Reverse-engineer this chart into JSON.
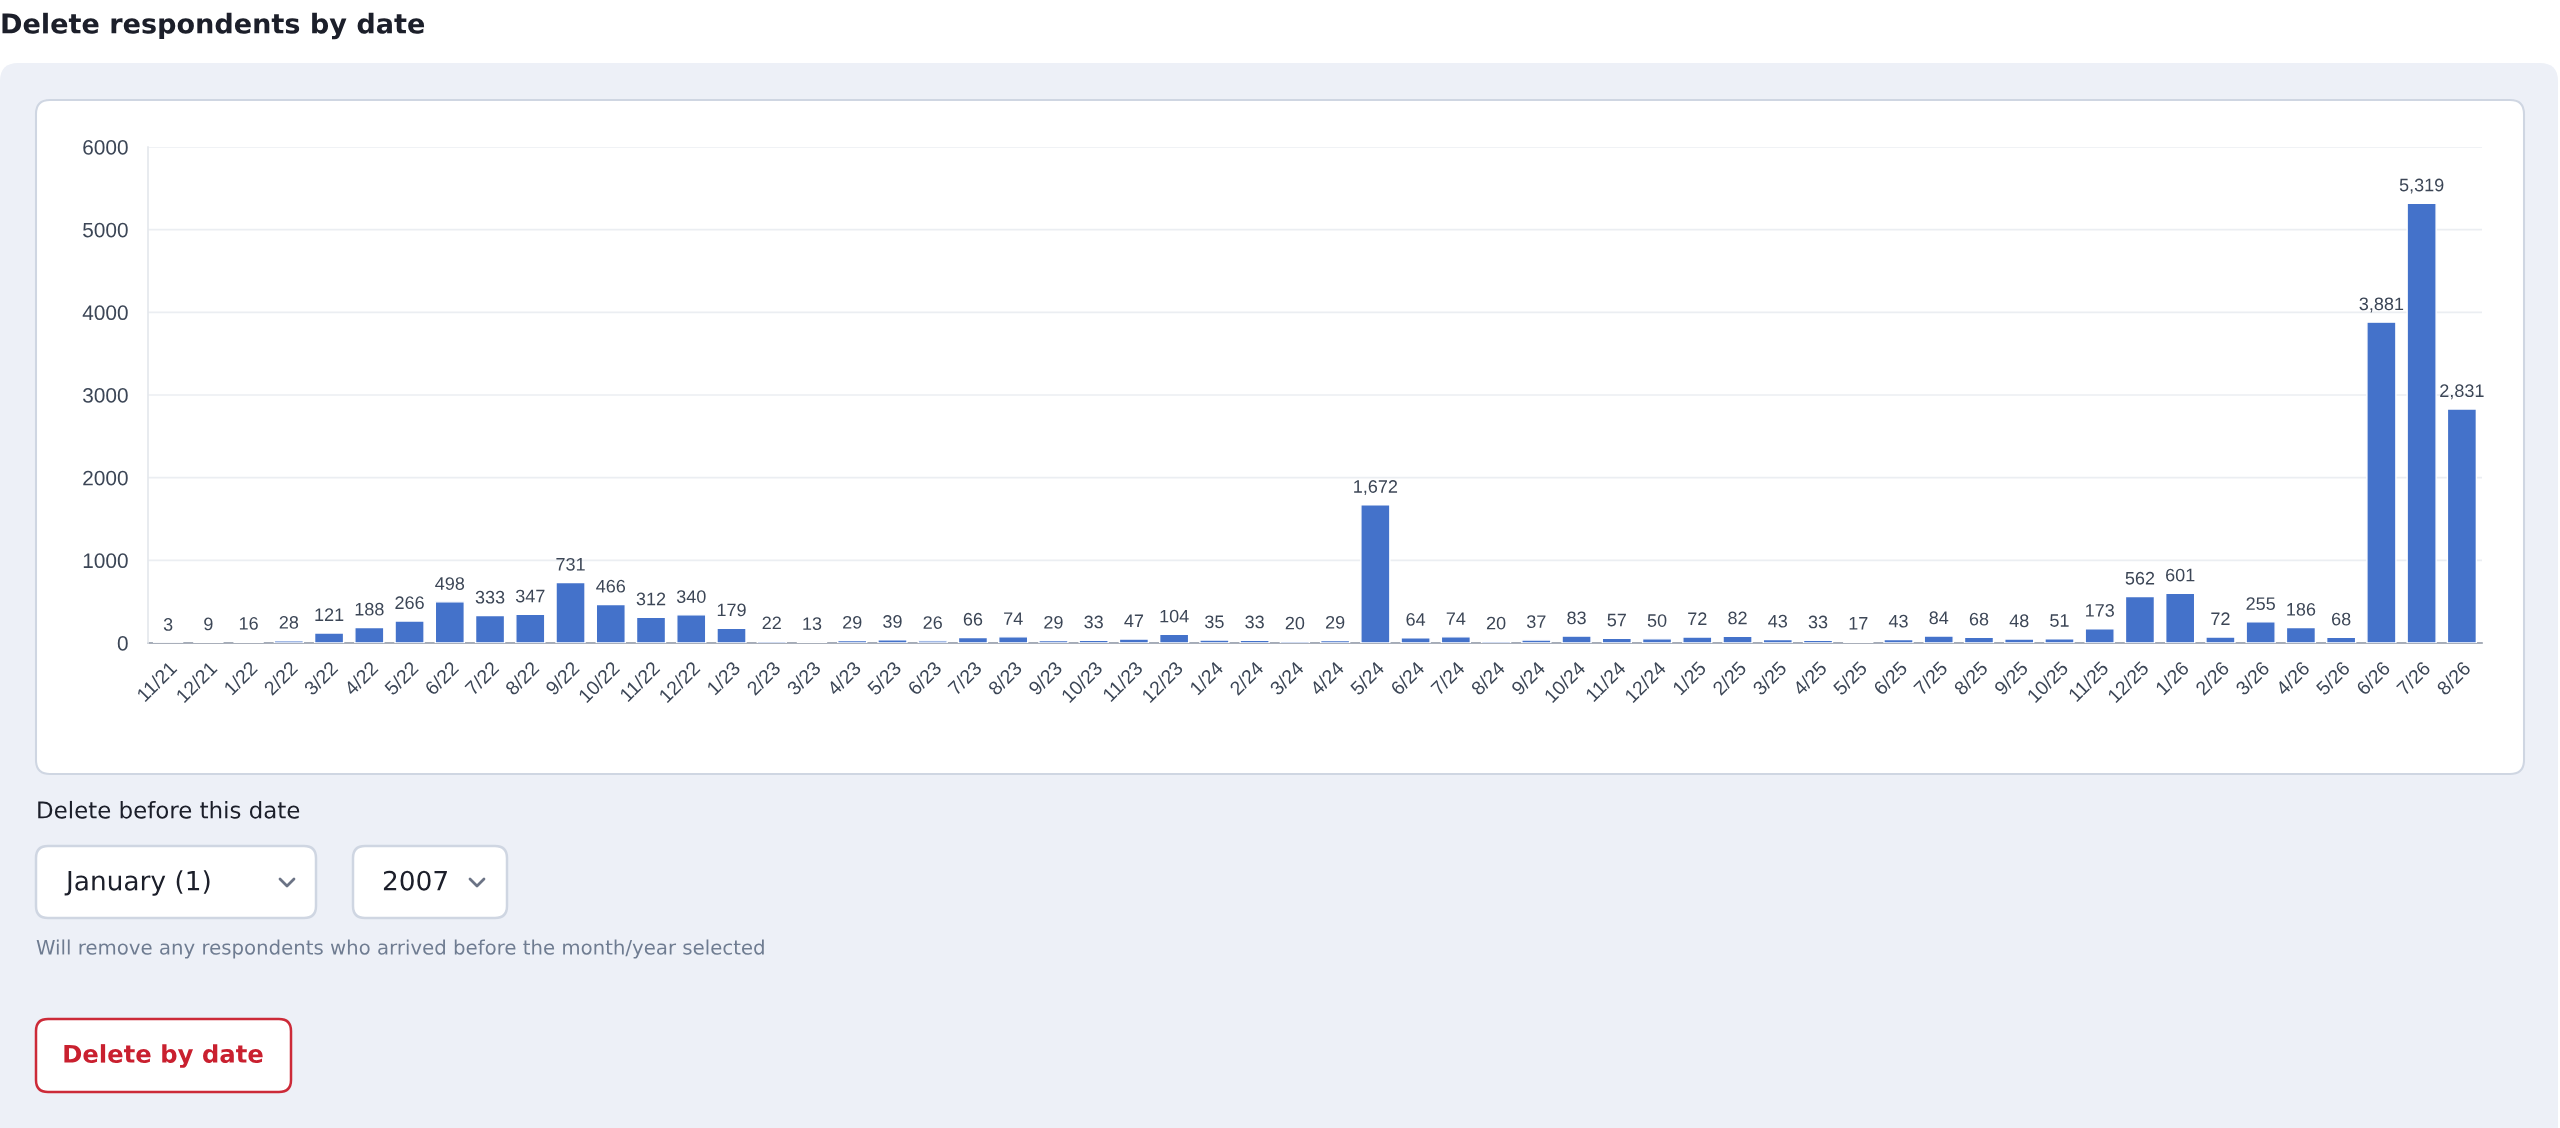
{
  "chart_data": {
    "type": "bar",
    "title": "Delete respondents by date",
    "categories": [
      "11/21",
      "12/21",
      "1/22",
      "2/22",
      "3/22",
      "4/22",
      "5/22",
      "6/22",
      "7/22",
      "8/22",
      "9/22",
      "10/22",
      "11/22",
      "12/22",
      "1/23",
      "2/23",
      "3/23",
      "4/23",
      "5/23",
      "6/23",
      "7/23",
      "8/23",
      "9/23",
      "10/23",
      "11/23",
      "12/23",
      "1/24",
      "2/24",
      "3/24",
      "4/24",
      "5/24",
      "6/24",
      "7/24",
      "8/24",
      "9/24",
      "10/24",
      "11/24",
      "12/24",
      "1/25",
      "2/25",
      "3/25",
      "4/25",
      "5/25",
      "6/25",
      "7/25",
      "8/25",
      "9/25",
      "10/25",
      "11/25",
      "12/25",
      "1/26",
      "2/26",
      "3/26",
      "4/26",
      "5/26",
      "6/26",
      "7/26",
      "8/26"
    ],
    "values": [
      3,
      9,
      16,
      28,
      121,
      188,
      266,
      498,
      333,
      347,
      731,
      466,
      312,
      340,
      179,
      22,
      13,
      29,
      39,
      26,
      66,
      74,
      29,
      33,
      47,
      104,
      35,
      33,
      20,
      29,
      1672,
      64,
      74,
      20,
      37,
      83,
      57,
      50,
      72,
      82,
      43,
      33,
      17,
      43,
      84,
      68,
      48,
      51,
      173,
      562,
      601,
      72,
      255,
      186,
      68,
      3881,
      5319,
      2831
    ],
    "value_labels": [
      "3",
      "9",
      "16",
      "28",
      "121",
      "188",
      "266",
      "498",
      "333",
      "347",
      "731",
      "466",
      "312",
      "340",
      "179",
      "22",
      "13",
      "29",
      "39",
      "26",
      "66",
      "74",
      "29",
      "33",
      "47",
      "104",
      "35",
      "33",
      "20",
      "29",
      "1,672",
      "64",
      "74",
      "20",
      "37",
      "83",
      "57",
      "50",
      "72",
      "82",
      "43",
      "33",
      "17",
      "43",
      "84",
      "68",
      "48",
      "51",
      "173",
      "562",
      "601",
      "72",
      "255",
      "186",
      "68",
      "3,881",
      "5,319",
      "2,831"
    ],
    "color": "#4472ca",
    "ylim": [
      0,
      6000
    ],
    "yticks": [
      0,
      1000,
      2000,
      3000,
      4000,
      5000,
      6000
    ],
    "grid": "y",
    "annotations": [
      "Delete before this date",
      "January (1)",
      "2007",
      "Will remove any respondents who arrived before the month/year selected",
      "Delete by date"
    ]
  }
}
